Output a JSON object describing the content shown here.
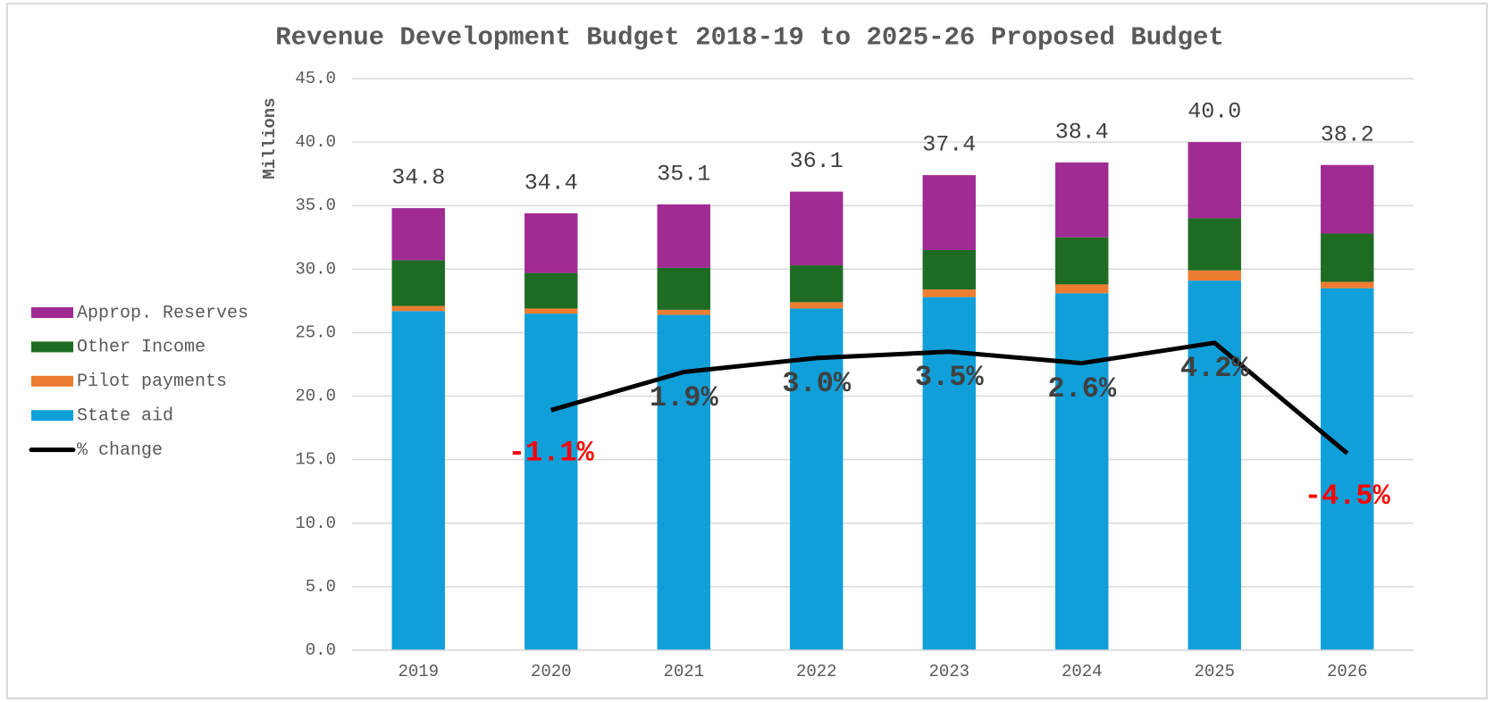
{
  "chart_data": {
    "type": "bar",
    "stacked": true,
    "title": "Revenue Development Budget 2018-19 to 2025-26 Proposed Budget",
    "y_label": "Millions",
    "categories": [
      "2019",
      "2020",
      "2021",
      "2022",
      "2023",
      "2024",
      "2025",
      "2026"
    ],
    "series": [
      {
        "name": "State aid",
        "color": "#109fd9",
        "values": [
          26.7,
          26.5,
          26.4,
          26.9,
          27.8,
          28.1,
          29.1,
          28.5
        ]
      },
      {
        "name": "Pilot payments",
        "color": "#ed7d31",
        "values": [
          0.4,
          0.4,
          0.4,
          0.5,
          0.6,
          0.7,
          0.8,
          0.5
        ]
      },
      {
        "name": "Other Income",
        "color": "#1e6b23",
        "values": [
          3.6,
          2.8,
          3.3,
          2.9,
          3.1,
          3.7,
          4.1,
          3.8
        ]
      },
      {
        "name": "Approp. Reserves",
        "color": "#a02b93",
        "values": [
          4.1,
          4.7,
          5.0,
          5.8,
          5.9,
          5.9,
          6.0,
          5.4
        ]
      },
      {
        "name": "% change",
        "type": "line",
        "axis": "y2",
        "color": "#000000",
        "values": [
          null,
          -1.1,
          1.9,
          3.0,
          3.5,
          2.6,
          4.2,
          -4.5
        ],
        "value_labels": [
          null,
          "-1.1%",
          "1.9%",
          "3.0%",
          "3.5%",
          "2.6%",
          "4.2%",
          "-4.5%"
        ]
      }
    ],
    "totals": [
      34.8,
      34.4,
      35.1,
      36.1,
      37.4,
      38.4,
      40.0,
      38.2
    ],
    "total_labels": [
      "34.8",
      "34.4",
      "35.1",
      "36.1",
      "37.4",
      "38.4",
      "40.0",
      "38.2"
    ],
    "ylim": [
      0,
      45
    ],
    "yticks": [
      {
        "value": 0,
        "label": "0.0"
      },
      {
        "value": 5,
        "label": "5.0"
      },
      {
        "value": 10,
        "label": "10.0"
      },
      {
        "value": 15,
        "label": "15.0"
      },
      {
        "value": 20,
        "label": "20.0"
      },
      {
        "value": 25,
        "label": "25.0"
      },
      {
        "value": 30,
        "label": "30.0"
      },
      {
        "value": 35,
        "label": "35.0"
      },
      {
        "value": 40,
        "label": "40.0"
      },
      {
        "value": 45,
        "label": "45.0"
      }
    ],
    "y2lim": [
      -20,
      25
    ],
    "grid": true,
    "legend": "left"
  }
}
